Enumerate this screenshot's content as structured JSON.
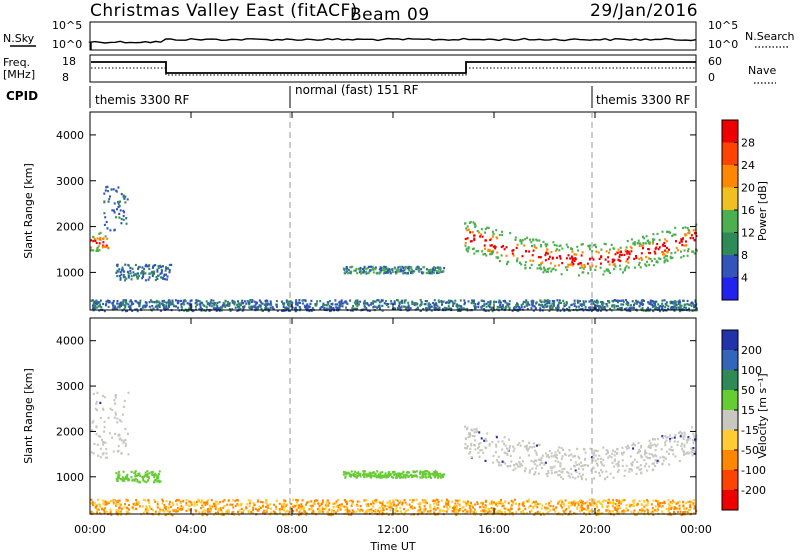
{
  "header": {
    "station": "Christmas Valley East (fitACF)",
    "beam": "Beam 09",
    "date": "29/Jan/2016"
  },
  "status_panels": {
    "nsky_label": "N.Sky",
    "nsky_ticks": [
      "10^5",
      "10^0"
    ],
    "nsearch_label": "N.Search",
    "nsearch_ticks": [
      "10^5",
      "10^0"
    ],
    "freq_label": "Freq.",
    "freq_unit": "[MHz]",
    "freq_ticks": [
      "18",
      "8"
    ],
    "nave_label": "Nave",
    "nave_ticks": [
      "60",
      "0"
    ],
    "cpid_label": "CPID",
    "cpid_segments": [
      "themis 3300 RF",
      "normal (fast) 151 RF",
      "themis 3300 RF"
    ]
  },
  "chart_data": [
    {
      "type": "heatmap",
      "name": "Power",
      "xlabel": "",
      "ylabel": "Slant Range [km]",
      "ylim": [
        180,
        4500
      ],
      "y_ticks": [
        "1000",
        "2000",
        "3000",
        "4000"
      ],
      "colorbar_label": "Power [dB]",
      "colorbar_ticks": [
        "4",
        "8",
        "12",
        "16",
        "20",
        "24",
        "28"
      ],
      "colorbar_colors": [
        "#2222ee",
        "#3355bb",
        "#2e8b57",
        "#4caf50",
        "#f0c020",
        "#ff8800",
        "#ff4400",
        "#ee0000"
      ],
      "regions": [
        {
          "t": [
            0.0,
            0.7
          ],
          "range": [
            1450,
            1900
          ],
          "level": "high"
        },
        {
          "t": [
            0.5,
            1.5
          ],
          "range": [
            1900,
            2900
          ],
          "level": "low"
        },
        {
          "t": [
            1.0,
            3.2
          ],
          "range": [
            850,
            1200
          ],
          "level": "low"
        },
        {
          "t": [
            10.0,
            14.0
          ],
          "range": [
            1000,
            1150
          ],
          "level": "mid"
        },
        {
          "t": [
            14.8,
            24.0
          ],
          "range": [
            1100,
            2300
          ],
          "level": "high"
        },
        {
          "t": [
            0.0,
            24.0
          ],
          "range": [
            180,
            420
          ],
          "level": "low"
        }
      ]
    },
    {
      "type": "heatmap",
      "name": "Velocity",
      "xlabel": "Time UT",
      "ylabel": "Slant Range [km]",
      "ylim": [
        180,
        4500
      ],
      "y_ticks": [
        "1000",
        "2000",
        "3000",
        "4000"
      ],
      "x_ticks": [
        "00:00",
        "04:00",
        "08:00",
        "12:00",
        "16:00",
        "20:00",
        "00:00"
      ],
      "colorbar_label": "Velocity [m s⁻¹]",
      "colorbar_ticks": [
        "200",
        "100",
        "50",
        "15",
        "-15",
        "-50",
        "-100",
        "-200"
      ],
      "colorbar_colors": [
        "#2233aa",
        "#3366bb",
        "#2e8b57",
        "#66cc33",
        "#c8c8c0",
        "#ffcc33",
        "#ff8800",
        "#ff4400",
        "#ee0000"
      ],
      "regions": [
        {
          "t": [
            0.0,
            1.5
          ],
          "range": [
            1400,
            2900
          ],
          "level": "ground-scatter"
        },
        {
          "t": [
            1.0,
            2.8
          ],
          "range": [
            900,
            1150
          ],
          "level": "positive"
        },
        {
          "t": [
            10.0,
            14.0
          ],
          "range": [
            1000,
            1150
          ],
          "level": "positive"
        },
        {
          "t": [
            14.8,
            24.0
          ],
          "range": [
            1100,
            2300
          ],
          "level": "ground-scatter"
        },
        {
          "t": [
            0.0,
            24.0
          ],
          "range": [
            180,
            520
          ],
          "level": "negative"
        }
      ]
    }
  ]
}
